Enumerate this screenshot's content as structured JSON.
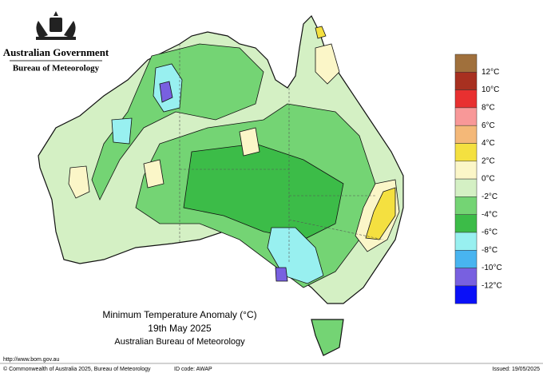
{
  "header": {
    "government": "Australian Government",
    "agency": "Bureau of Meteorology"
  },
  "title": {
    "line1": "Minimum Temperature Anomaly (°C)",
    "line2": "19th May 2025",
    "line3": "Australian Bureau of Meteorology"
  },
  "legend": {
    "labels": [
      "12°C",
      "10°C",
      "8°C",
      "6°C",
      "4°C",
      "2°C",
      "0°C",
      "-2°C",
      "-4°C",
      "-6°C",
      "-8°C",
      "-10°C",
      "-12°C"
    ],
    "colors": [
      "#a0703c",
      "#a83020",
      "#e83030",
      "#f89898",
      "#f4b878",
      "#f4e040",
      "#fbf6c8",
      "#d4f0c4",
      "#74d474",
      "#3cbc48",
      "#98f0f0",
      "#48b4f0",
      "#7860e0",
      "#0a10f8"
    ]
  },
  "footer": {
    "url": "http://www.bom.gov.au",
    "copyright": "© Commonwealth of Australia 2025, Bureau of Meteorology",
    "id_code": "ID code: AWAP",
    "issued": "Issued: 19/05/2025"
  }
}
